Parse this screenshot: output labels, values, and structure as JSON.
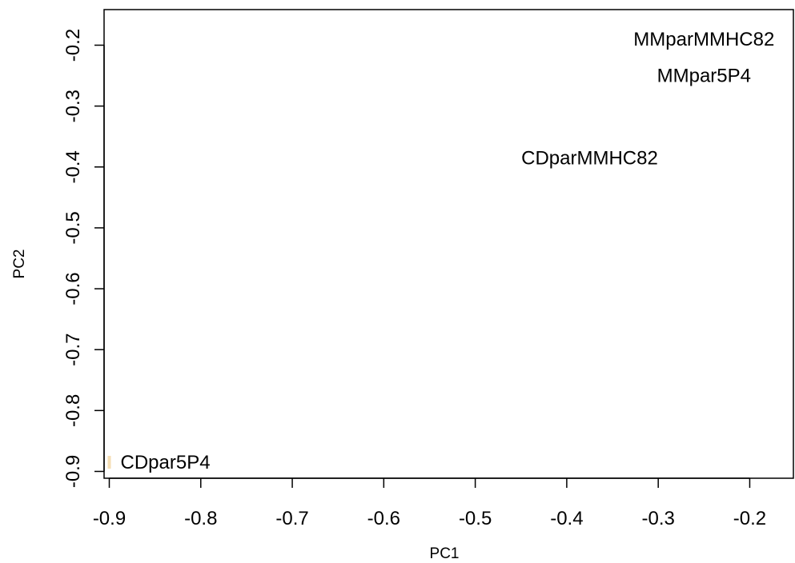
{
  "chart_data": {
    "type": "scatter",
    "title": "",
    "xlabel": "PC1",
    "ylabel": "PC2",
    "xlim": [
      -0.9,
      -0.15
    ],
    "ylim": [
      -0.9,
      -0.15
    ],
    "xticks": [
      -0.9,
      -0.8,
      -0.7,
      -0.6,
      -0.5,
      -0.4,
      -0.3,
      -0.2
    ],
    "yticks": [
      -0.2,
      -0.3,
      -0.4,
      -0.5,
      -0.6,
      -0.7,
      -0.8,
      -0.9
    ],
    "grid": false,
    "legend": "none",
    "points": [
      {
        "label": "MMparMMHC82",
        "x": -0.25,
        "y": -0.19
      },
      {
        "label": "MMpar5P4",
        "x": -0.25,
        "y": -0.25
      },
      {
        "label": "CDparMMHC82",
        "x": -0.375,
        "y": -0.385
      },
      {
        "label": "CDpar5P4",
        "x": -0.9,
        "y": -0.885,
        "marker_color": "#f5deb3"
      }
    ]
  }
}
